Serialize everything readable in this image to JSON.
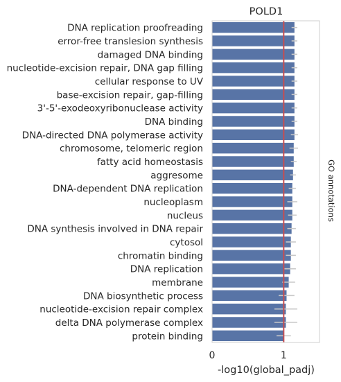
{
  "chart_data": {
    "type": "bar",
    "orientation": "horizontal",
    "title": "POLD1",
    "xlabel": "-log10(global_padj)",
    "ylabel": "",
    "side_label": "GO annotations",
    "xlim": [
      0,
      1.5
    ],
    "xticks": [
      0,
      1
    ],
    "reference_line": 1,
    "grid": false,
    "colors": {
      "bar": "#5874a6",
      "errorbar": "#c8c8c8",
      "refline": "#c44e52",
      "frame": "#cfcfcf"
    },
    "categories": [
      "DNA replication proofreading",
      "error-free translesion synthesis",
      "damaged DNA binding",
      "nucleotide-excision repair, DNA gap filling",
      "cellular response to UV",
      "base-excision repair, gap-filling",
      "3'-5'-exodeoxyribonuclease activity",
      "DNA binding",
      "DNA-directed DNA polymerase activity",
      "chromosome, telomeric region",
      "fatty acid homeostasis",
      "aggresome",
      "DNA-dependent DNA replication",
      "nucleoplasm",
      "nucleus",
      "DNA synthesis involved in DNA repair",
      "cytosol",
      "chromatin binding",
      "DNA replication",
      "membrane",
      "DNA biosynthetic process",
      "nucleotide-excision repair complex",
      "delta DNA polymerase complex",
      "protein binding"
    ],
    "values": [
      1.15,
      1.15,
      1.15,
      1.15,
      1.15,
      1.15,
      1.15,
      1.15,
      1.15,
      1.14,
      1.14,
      1.13,
      1.12,
      1.12,
      1.12,
      1.11,
      1.1,
      1.1,
      1.09,
      1.07,
      1.04,
      1.03,
      1.03,
      1.0
    ],
    "errors": [
      0.04,
      0.04,
      0.04,
      0.04,
      0.04,
      0.04,
      0.04,
      0.04,
      0.05,
      0.06,
      0.04,
      0.04,
      0.05,
      0.07,
      0.06,
      0.06,
      0.07,
      0.07,
      0.08,
      0.09,
      0.11,
      0.16,
      0.16,
      0.1
    ]
  }
}
